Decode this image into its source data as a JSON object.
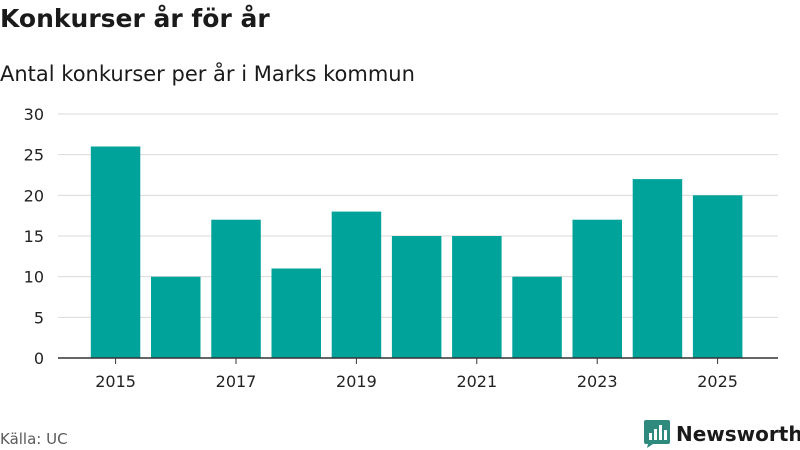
{
  "header": {
    "title": "Konkurser år för år",
    "subtitle": "Antal konkurser per år i Marks kommun"
  },
  "footer": {
    "source": "Källa: UC",
    "brand": "Newsworthy"
  },
  "colors": {
    "bar": "#00a39a",
    "brand": "#2f8a7e",
    "grid": "#d9d9d9",
    "axis": "#333333"
  },
  "chart_data": {
    "type": "bar",
    "title": "Konkurser år för år",
    "subtitle": "Antal konkurser per år i Marks kommun",
    "xlabel": "",
    "ylabel": "",
    "categories": [
      "2015",
      "2016",
      "2017",
      "2018",
      "2019",
      "2020",
      "2021",
      "2022",
      "2023",
      "2024",
      "2025"
    ],
    "series": [
      {
        "name": "Antal konkurser",
        "values": [
          26,
          10,
          17,
          11,
          18,
          15,
          15,
          10,
          17,
          22,
          20
        ]
      }
    ],
    "x_tick_labels": [
      "2015",
      "2017",
      "2019",
      "2021",
      "2023",
      "2025"
    ],
    "y_ticks": [
      0,
      5,
      10,
      15,
      20,
      25,
      30
    ],
    "ylim": [
      0,
      30
    ],
    "grid": true,
    "legend": "none"
  }
}
